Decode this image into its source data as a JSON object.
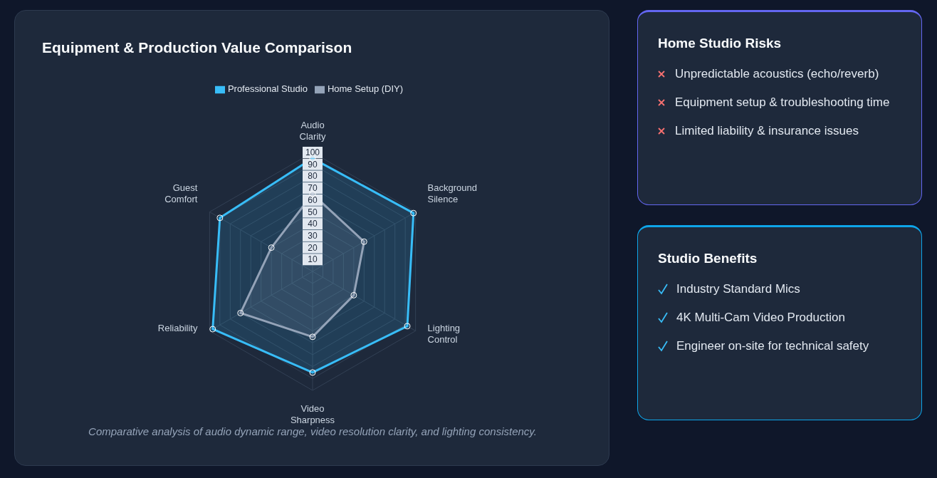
{
  "chart_data": [
    {
      "type": "radar",
      "title": "Equipment & Production Value Comparison",
      "categories": [
        "Audio Clarity",
        "Background Silence",
        "Lighting Control",
        "Video Sharpness",
        "Reliability",
        "Guest Comfort"
      ],
      "series": [
        {
          "name": "Professional Studio",
          "color": "#38bdf8",
          "values": [
            95,
            98,
            92,
            85,
            97,
            90
          ]
        },
        {
          "name": "Home Setup (DIY)",
          "color": "#94a3b8",
          "values": [
            65,
            50,
            40,
            55,
            70,
            40
          ]
        }
      ],
      "ylim": [
        0,
        100
      ],
      "yticks": [
        10,
        20,
        30,
        40,
        50,
        60,
        70,
        80,
        90,
        100
      ],
      "grid": true,
      "legend": "top",
      "marker": "circle",
      "annotations": [
        "Comparative analysis of audio dynamic range, video resolution clarity, and lighting consistency."
      ]
    },
    {
      "type": "other",
      "title": "Home Studio Risks",
      "annotations": [
        "Unpredictable acoustics (echo/reverb)",
        "Equipment setup & troubleshooting time",
        "Limited liability & insurance issues"
      ]
    },
    {
      "type": "other",
      "title": "Studio Benefits",
      "annotations": [
        "Industry Standard Mics",
        "4K Multi-Cam Video Production",
        "Engineer on-site for technical safety"
      ]
    }
  ]
}
